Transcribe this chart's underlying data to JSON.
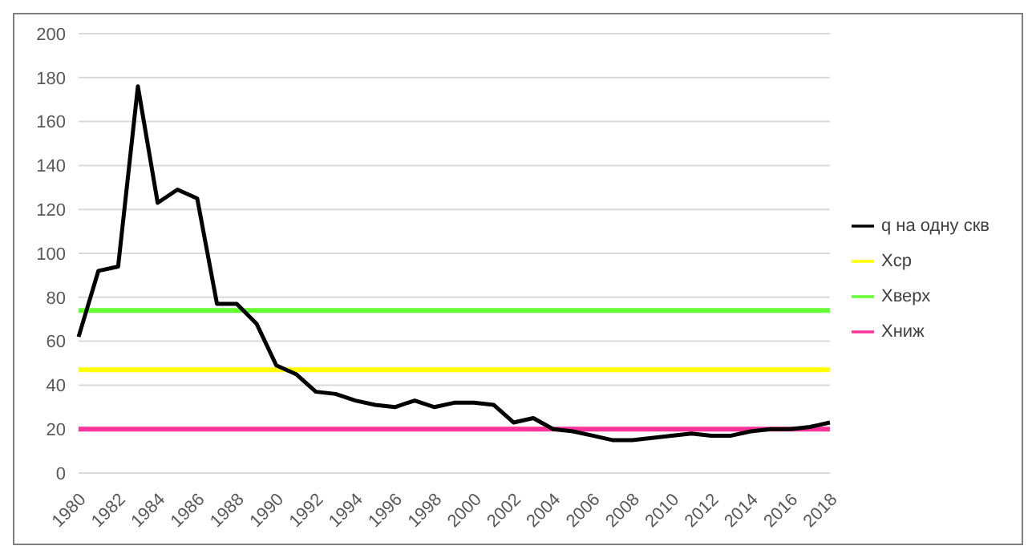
{
  "chart_data": {
    "type": "line",
    "categories": [
      "1980",
      null,
      "1982",
      null,
      "1984",
      null,
      "1986",
      null,
      "1988",
      null,
      "1990",
      null,
      "1992",
      null,
      "1994",
      null,
      "1996",
      null,
      "1998",
      null,
      "2000",
      null,
      "2002",
      null,
      "2004",
      null,
      "2006",
      null,
      "2008",
      null,
      "2010",
      null,
      "2012",
      null,
      "2014",
      null,
      "2016",
      null,
      "2018"
    ],
    "series": [
      {
        "name": "q на одну скв",
        "color": "#000000",
        "values": [
          62,
          92,
          94,
          176,
          123,
          129,
          125,
          77,
          77,
          68,
          49,
          45,
          37,
          36,
          33,
          31,
          30,
          33,
          30,
          32,
          32,
          31,
          23,
          25,
          20,
          19,
          17,
          15,
          15,
          16,
          17,
          18,
          17,
          17,
          19,
          20,
          20,
          21,
          23
        ]
      },
      {
        "name": "Хср",
        "color": "#ffff00",
        "values": [
          47,
          47,
          47,
          47,
          47,
          47,
          47,
          47,
          47,
          47,
          47,
          47,
          47,
          47,
          47,
          47,
          47,
          47,
          47,
          47,
          47,
          47,
          47,
          47,
          47,
          47,
          47,
          47,
          47,
          47,
          47,
          47,
          47,
          47,
          47,
          47,
          47,
          47,
          47
        ]
      },
      {
        "name": "Хверх",
        "color": "#66ff33",
        "values": [
          74,
          74,
          74,
          74,
          74,
          74,
          74,
          74,
          74,
          74,
          74,
          74,
          74,
          74,
          74,
          74,
          74,
          74,
          74,
          74,
          74,
          74,
          74,
          74,
          74,
          74,
          74,
          74,
          74,
          74,
          74,
          74,
          74,
          74,
          74,
          74,
          74,
          74,
          74
        ]
      },
      {
        "name": "Хниж",
        "color": "#ff3399",
        "values": [
          20,
          20,
          20,
          20,
          20,
          20,
          20,
          20,
          20,
          20,
          20,
          20,
          20,
          20,
          20,
          20,
          20,
          20,
          20,
          20,
          20,
          20,
          20,
          20,
          20,
          20,
          20,
          20,
          20,
          20,
          20,
          20,
          20,
          20,
          20,
          20,
          20,
          20,
          20
        ]
      }
    ],
    "ylim": [
      0,
      200
    ],
    "yticks": [
      0,
      20,
      40,
      60,
      80,
      100,
      120,
      140,
      160,
      180,
      200
    ],
    "grid": "y",
    "legend": "right",
    "marker": "none",
    "line_style": "solid"
  }
}
